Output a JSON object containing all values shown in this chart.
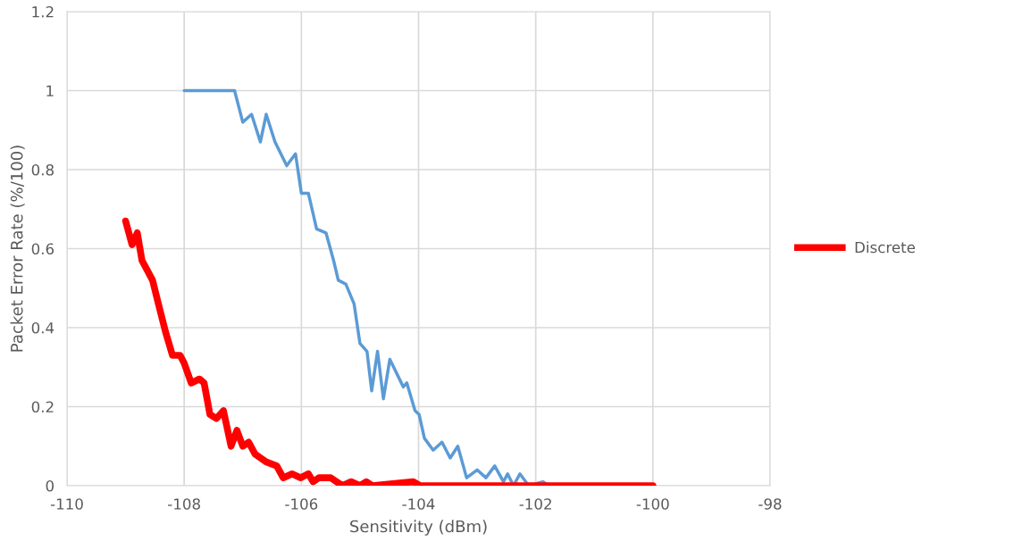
{
  "chart_data": {
    "type": "line",
    "xlabel": "Sensitivity (dBm)",
    "ylabel": "Packet Error Rate (%/100)",
    "xlim": [
      -110,
      -98
    ],
    "xticks": [
      -110,
      -108,
      -106,
      -104,
      -102,
      -100,
      -98
    ],
    "ylim": [
      0,
      1.2
    ],
    "yticks": [
      0,
      0.2,
      0.4,
      0.6,
      0.8,
      1,
      1.2
    ],
    "grid": true,
    "legend": "right",
    "marker": "none",
    "line_style": "solid",
    "series": [
      {
        "name": "Discrete",
        "color": "#ff0000",
        "x": [
          -109.0,
          -108.89,
          -108.8,
          -108.72,
          -108.54,
          -108.44,
          -108.32,
          -108.2,
          -108.07,
          -108.0,
          -107.88,
          -107.74,
          -107.66,
          -107.56,
          -107.45,
          -107.33,
          -107.2,
          -107.1,
          -107.0,
          -106.9,
          -106.79,
          -106.6,
          -106.42,
          -106.31,
          -106.16,
          -106.01,
          -105.88,
          -105.8,
          -105.7,
          -105.5,
          -105.3,
          -105.15,
          -105.0,
          -104.89,
          -104.79,
          -104.09,
          -103.97,
          -100
        ],
        "values": [
          0.67,
          0.61,
          0.64,
          0.57,
          0.52,
          0.46,
          0.39,
          0.33,
          0.33,
          0.31,
          0.26,
          0.27,
          0.26,
          0.18,
          0.17,
          0.19,
          0.1,
          0.14,
          0.1,
          0.11,
          0.08,
          0.06,
          0.05,
          0.02,
          0.03,
          0.02,
          0.03,
          0.01,
          0.02,
          0.02,
          0,
          0.01,
          0,
          0.01,
          0,
          0.01,
          0,
          0
        ]
      },
      {
        "color": "#5b9bd5",
        "x": [
          -108,
          -107.14,
          -107.0,
          -106.85,
          -106.7,
          -106.6,
          -106.45,
          -106.25,
          -106.1,
          -106.0,
          -105.88,
          -105.74,
          -105.58,
          -105.45,
          -105.37,
          -105.24,
          -105.1,
          -105.0,
          -104.88,
          -104.8,
          -104.7,
          -104.6,
          -104.49,
          -104.26,
          -104.2,
          -104.06,
          -103.99,
          -103.9,
          -103.75,
          -103.6,
          -103.46,
          -103.33,
          -103.18,
          -103.0,
          -102.85,
          -102.7,
          -102.55,
          -102.48,
          -102.38,
          -102.27,
          -102.12,
          -101.88,
          -101.77,
          -100
        ],
        "values": [
          1,
          1,
          0.92,
          0.94,
          0.87,
          0.94,
          0.87,
          0.81,
          0.84,
          0.74,
          0.74,
          0.65,
          0.64,
          0.57,
          0.52,
          0.51,
          0.46,
          0.36,
          0.34,
          0.24,
          0.34,
          0.22,
          0.32,
          0.25,
          0.26,
          0.19,
          0.18,
          0.12,
          0.09,
          0.11,
          0.07,
          0.1,
          0.02,
          0.04,
          0.02,
          0.05,
          0.01,
          0.03,
          0,
          0.03,
          0,
          0.01,
          0,
          0
        ]
      }
    ]
  }
}
